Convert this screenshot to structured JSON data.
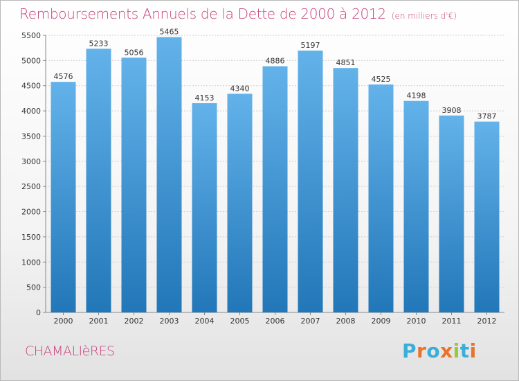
{
  "header": {
    "title": "Remboursements Annuels de la Dette de 2000 à 2012",
    "subtitle": "(en milliers d'€)"
  },
  "commune": "CHAMALIèRES",
  "logo": {
    "text": "Proxiti",
    "colors": [
      "#3aaed8",
      "#e8742a",
      "#3aaed8",
      "#e8742a",
      "#9bc73a",
      "#3aaed8",
      "#e8742a"
    ]
  },
  "colors": {
    "title": "#c8407a",
    "bar_top": "#63b2ea",
    "bar_bottom": "#2277b8"
  },
  "chart_data": {
    "type": "bar",
    "title": "Remboursements Annuels de la Dette de 2000 à 2012",
    "subtitle": "(en milliers d'€)",
    "xlabel": "",
    "ylabel": "",
    "categories": [
      "2000",
      "2001",
      "2002",
      "2003",
      "2004",
      "2005",
      "2006",
      "2007",
      "2008",
      "2009",
      "2010",
      "2011",
      "2012"
    ],
    "values": [
      4576,
      5233,
      5056,
      5465,
      4153,
      4340,
      4886,
      5197,
      4851,
      4525,
      4198,
      3908,
      3787
    ],
    "ylim": [
      0,
      5500
    ],
    "yticks": [
      0,
      500,
      1000,
      1500,
      2000,
      2500,
      3000,
      3500,
      4000,
      4500,
      5000,
      5500
    ],
    "grid": true,
    "legend": "none"
  }
}
